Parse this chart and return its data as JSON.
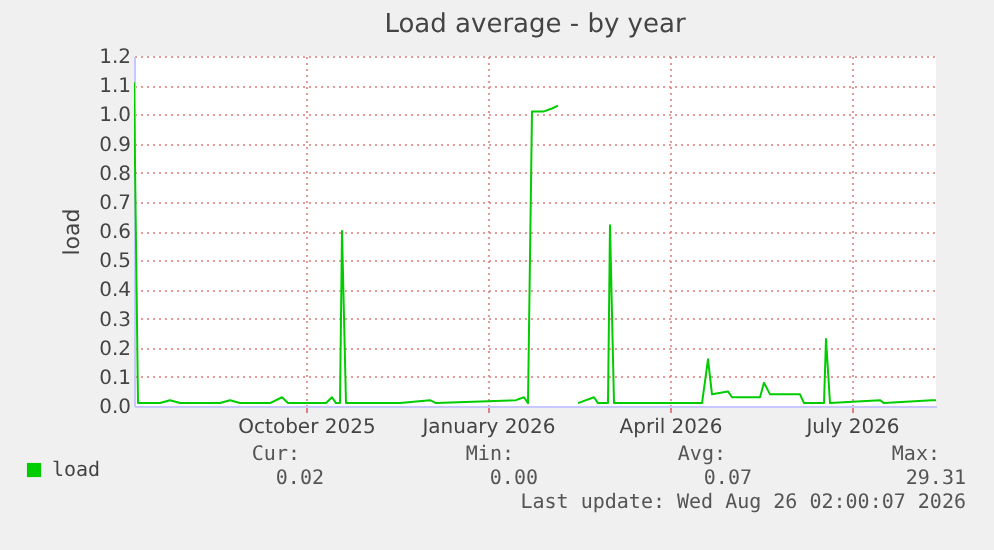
{
  "chart_data": {
    "type": "line",
    "title": "Load average - by year",
    "ylabel": "load",
    "x": [
      "2025-07-21",
      "2025-07-23",
      "2025-08-03",
      "2025-08-08",
      "2025-08-13",
      "2025-09-02",
      "2025-09-07",
      "2025-09-12",
      "2025-09-27",
      "2025-10-03",
      "2025-10-06",
      "2025-10-25",
      "2025-10-28",
      "2025-10-30",
      "2025-11-01",
      "2025-11-02",
      "2025-11-04",
      "2025-12-01",
      "2025-12-16",
      "2025-12-19",
      "2026-01-28",
      "2026-02-01",
      "2026-02-03",
      "2026-02-05",
      "2026-02-11",
      "2026-02-15",
      "2026-02-18",
      "2026-02-23",
      "2026-02-28",
      "2026-03-08",
      "2026-03-10",
      "2026-03-15",
      "2026-03-16",
      "2026-03-18",
      "2026-04-01",
      "2026-04-20",
      "2026-05-01",
      "2026-05-04",
      "2026-05-06",
      "2026-05-14",
      "2026-05-16",
      "2026-05-30",
      "2026-06-01",
      "2026-06-04",
      "2026-06-19",
      "2026-06-21",
      "2026-07-01",
      "2026-07-02",
      "2026-07-04",
      "2026-07-29",
      "2026-07-31",
      "2026-08-24",
      "2026-08-26"
    ],
    "series": [
      {
        "name": "load",
        "color": "#00cc00",
        "values": [
          1.11,
          0.01,
          0.01,
          0.02,
          0.01,
          0.01,
          0.02,
          0.01,
          0.01,
          0.03,
          0.01,
          0.01,
          0.03,
          0.01,
          0.01,
          0.6,
          0.01,
          0.01,
          0.02,
          0.01,
          0.02,
          0.03,
          0.01,
          1.01,
          1.01,
          1.02,
          1.03,
          null,
          0.01,
          0.03,
          0.01,
          0.01,
          0.62,
          0.01,
          0.01,
          0.01,
          0.01,
          0.16,
          0.04,
          0.05,
          0.03,
          0.03,
          0.08,
          0.04,
          0.04,
          0.01,
          0.01,
          0.23,
          0.01,
          0.02,
          0.01,
          0.02,
          0.02
        ]
      }
    ],
    "xlim": [
      "2025-07-21",
      "2026-08-26"
    ],
    "xticks": [
      {
        "value": "2025-10-15",
        "label": "October 2025"
      },
      {
        "value": "2026-01-14",
        "label": "January 2026"
      },
      {
        "value": "2026-04-15",
        "label": "April 2026"
      },
      {
        "value": "2026-07-15",
        "label": "July 2026"
      }
    ],
    "ylim": [
      0,
      1.2
    ],
    "yticks": [
      {
        "value": 0,
        "label": "0.0"
      },
      0.1,
      0.2,
      0.3,
      0.4,
      0.5,
      0.6,
      0.7,
      0.8,
      0.9,
      {
        "value": 1,
        "label": "1.0"
      },
      1.1,
      1.2
    ],
    "grid": true,
    "legend": "bottom left",
    "marker": "none",
    "line_style": "solid",
    "annotations": [
      "Cur:",
      "Min:",
      "Avg:",
      "Max:",
      "0.02",
      "0.00",
      "0.07",
      "29.31",
      "Last update: Wed Aug 26 02:00:07 2026"
    ]
  }
}
